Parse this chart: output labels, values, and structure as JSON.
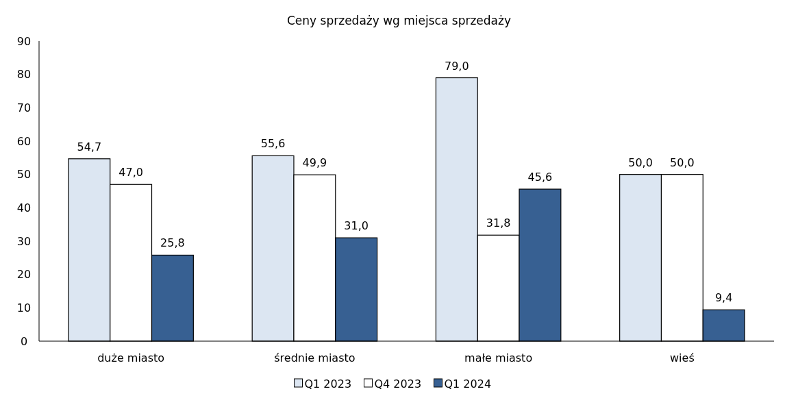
{
  "chart_data": {
    "type": "bar",
    "title": "Ceny sprzedaży wg miejsca sprzedaży",
    "categories": [
      "duże miasto",
      "średnie miasto",
      "małe miasto",
      "wieś"
    ],
    "series": [
      {
        "name": "Q1 2023",
        "color": "#dce6f2",
        "values": [
          54.7,
          55.6,
          79.0,
          50.0
        ],
        "value_labels": [
          "54,7",
          "55,6",
          "79,0",
          "50,0"
        ]
      },
      {
        "name": "Q4 2023",
        "color": "#ffffff",
        "values": [
          47.0,
          49.9,
          31.8,
          50.0
        ],
        "value_labels": [
          "47,0",
          "49,9",
          "31,8",
          "50,0"
        ]
      },
      {
        "name": "Q1 2024",
        "color": "#376092",
        "values": [
          25.8,
          31.0,
          45.6,
          9.4
        ],
        "value_labels": [
          "25,8",
          "31,0",
          "45,6",
          "9,4"
        ]
      }
    ],
    "ylim": [
      0,
      90
    ],
    "yticks": [
      0,
      10,
      20,
      30,
      40,
      50,
      60,
      70,
      80,
      90
    ],
    "grid": false,
    "legend": "bottom"
  }
}
